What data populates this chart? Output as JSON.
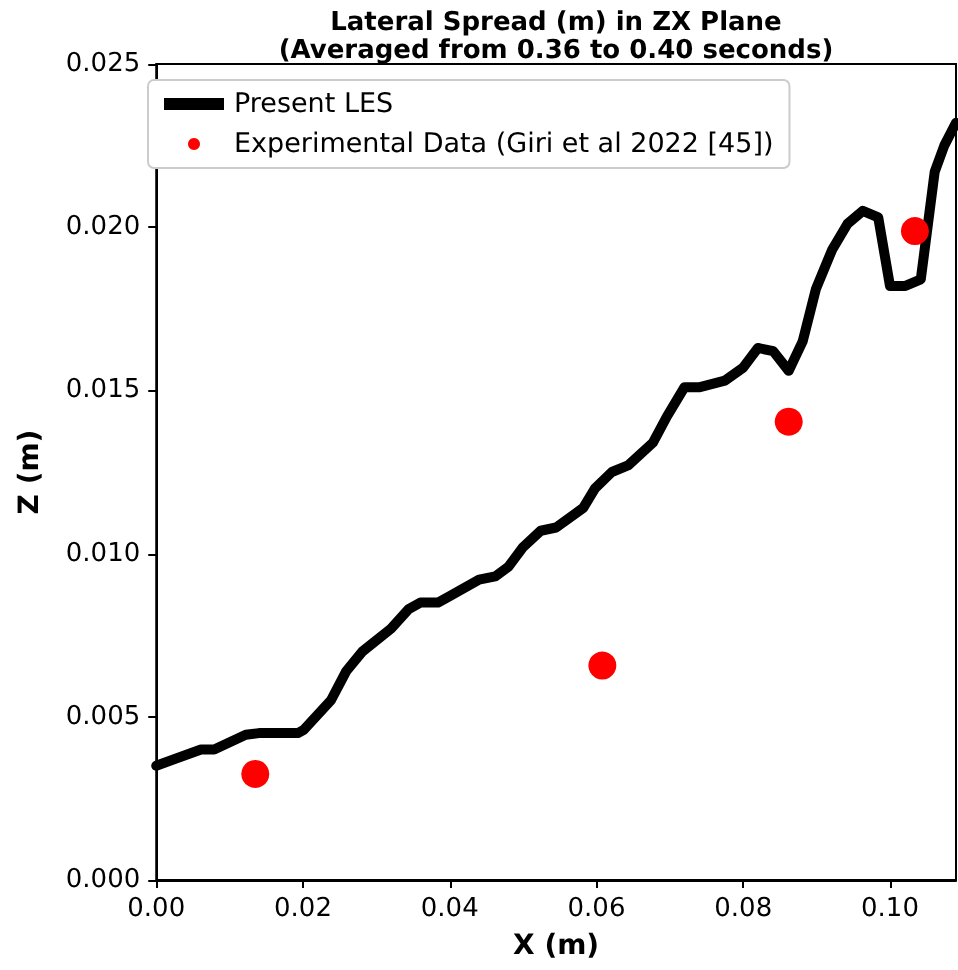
{
  "chart_data": {
    "type": "line",
    "title": "Lateral Spread (m) in ZX Plane",
    "subtitle": "(Averaged from 0.36 to 0.40 seconds)",
    "xlabel": "X (m)",
    "ylabel": "Z (m)",
    "series": [
      {
        "name": "Present LES",
        "color": "#000000",
        "marker": "none",
        "line_style": "solid",
        "x": [
          0,
          0.0061,
          0.0079,
          0.0122,
          0.014,
          0.0193,
          0.0201,
          0.0238,
          0.0259,
          0.0281,
          0.032,
          0.0344,
          0.036,
          0.0384,
          0.04,
          0.044,
          0.0462,
          0.048,
          0.05,
          0.0524,
          0.0545,
          0.0582,
          0.0598,
          0.0621,
          0.0643,
          0.0677,
          0.0696,
          0.072,
          0.0741,
          0.0775,
          0.08,
          0.082,
          0.0841,
          0.0862,
          0.0881,
          0.0899,
          0.0921,
          0.0942,
          0.0963,
          0.0984,
          0.1,
          0.1021,
          0.1042,
          0.1061,
          0.1074,
          0.109
        ],
        "values": [
          0.0035,
          0.004,
          0.004,
          0.00445,
          0.0045,
          0.0045,
          0.0046,
          0.0055,
          0.0064,
          0.007,
          0.0077,
          0.0083,
          0.0085,
          0.0085,
          0.0087,
          0.0092,
          0.0093,
          0.0096,
          0.0102,
          0.0107,
          0.0108,
          0.0114,
          0.012,
          0.0125,
          0.0127,
          0.0134,
          0.0142,
          0.0151,
          0.0151,
          0.0153,
          0.0157,
          0.0163,
          0.0162,
          0.0156,
          0.0165,
          0.0181,
          0.0193,
          0.0201,
          0.0205,
          0.0203,
          0.0182,
          0.0182,
          0.0184,
          0.0217,
          0.0225,
          0.0232
        ]
      },
      {
        "name": "Experimental Data (Giri et al 2022 [45])",
        "type": "scatter",
        "color": "#ff0000",
        "marker": "circle",
        "x": [
          0.0135,
          0.0608,
          0.0862,
          0.1034
        ],
        "values": [
          0.00325,
          0.00657,
          0.01404,
          0.01988
        ]
      }
    ],
    "xlim": [
      0,
      0.109
    ],
    "ylim": [
      0,
      0.025
    ],
    "xticks": [
      {
        "value": 0,
        "label": "0.00"
      },
      0.02,
      0.04,
      0.06,
      0.08,
      {
        "value": 0.1,
        "label": "0.10"
      }
    ],
    "yticks": [
      {
        "value": 0,
        "label": "0.000"
      },
      0.005,
      {
        "value": 0.01,
        "label": "0.010"
      },
      0.015,
      {
        "value": 0.02,
        "label": "0.020"
      },
      0.025
    ],
    "grid": false,
    "legend": "top left"
  }
}
